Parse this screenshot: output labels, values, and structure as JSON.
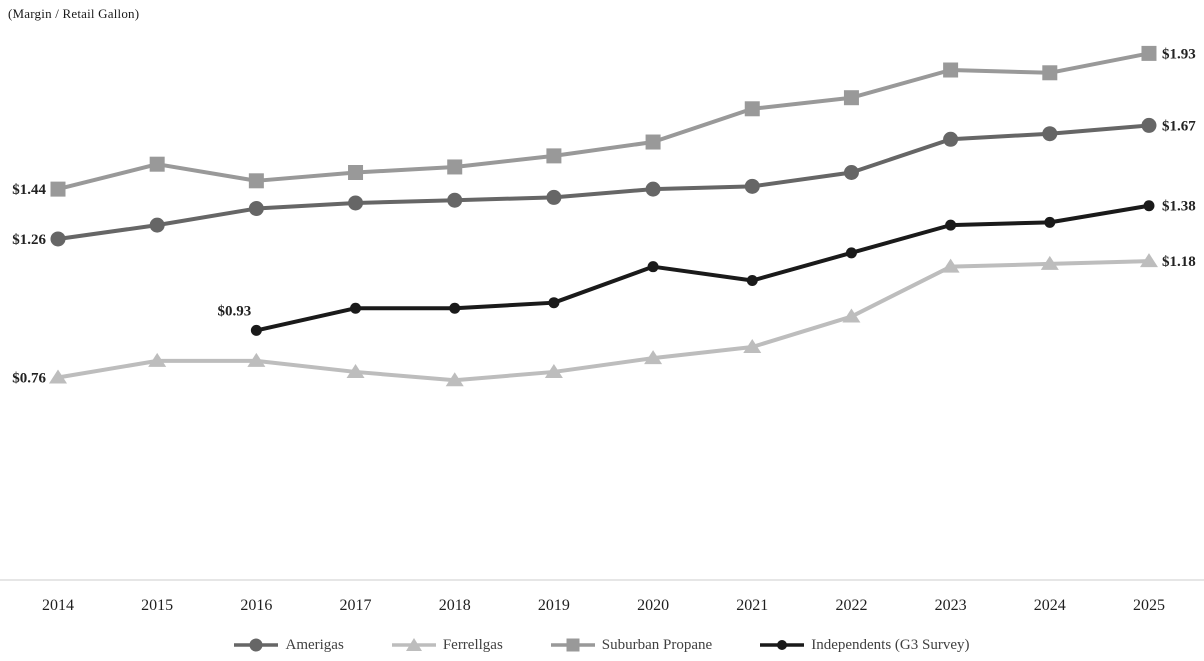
{
  "title": "(Margin / Retail Gallon)",
  "chart_data": {
    "type": "line",
    "title": "(Margin / Retail Gallon)",
    "xlabel": "",
    "ylabel": "Margin / Retail Gallon ($)",
    "x": [
      2014,
      2015,
      2016,
      2017,
      2018,
      2019,
      2020,
      2021,
      2022,
      2023,
      2024,
      2025
    ],
    "ylim": [
      0.6,
      2.05
    ],
    "grid": false,
    "legend_position": "bottom",
    "series": [
      {
        "name": "Amerigas",
        "marker": "circle",
        "color": "#666666",
        "values": [
          1.26,
          1.31,
          1.37,
          1.39,
          1.4,
          1.41,
          1.44,
          1.45,
          1.5,
          1.62,
          1.64,
          1.67
        ],
        "start_label": "$1.26",
        "end_label": "$1.67",
        "start_label_pos": "left"
      },
      {
        "name": "Ferrellgas",
        "marker": "triangle",
        "color": "#bdbdbd",
        "values": [
          0.76,
          0.82,
          0.82,
          0.78,
          0.75,
          0.78,
          0.83,
          0.87,
          0.98,
          1.16,
          1.17,
          1.18
        ],
        "start_label": "$0.76",
        "end_label": "$1.18",
        "start_label_pos": "left"
      },
      {
        "name": "Suburban Propane",
        "marker": "square",
        "color": "#999999",
        "values": [
          1.44,
          1.53,
          1.47,
          1.5,
          1.52,
          1.56,
          1.61,
          1.73,
          1.77,
          1.87,
          1.86,
          1.93
        ],
        "start_label": "$1.44",
        "end_label": "$1.93",
        "start_label_pos": "left"
      },
      {
        "name": "Independents (G3 Survey)",
        "marker": "dot",
        "color": "#1a1a1a",
        "values": [
          null,
          null,
          0.93,
          1.01,
          1.01,
          1.03,
          1.16,
          1.11,
          1.21,
          1.31,
          1.32,
          1.38
        ],
        "start_label": "$0.93",
        "end_label": "$1.38",
        "start_label_pos": "above"
      }
    ]
  }
}
